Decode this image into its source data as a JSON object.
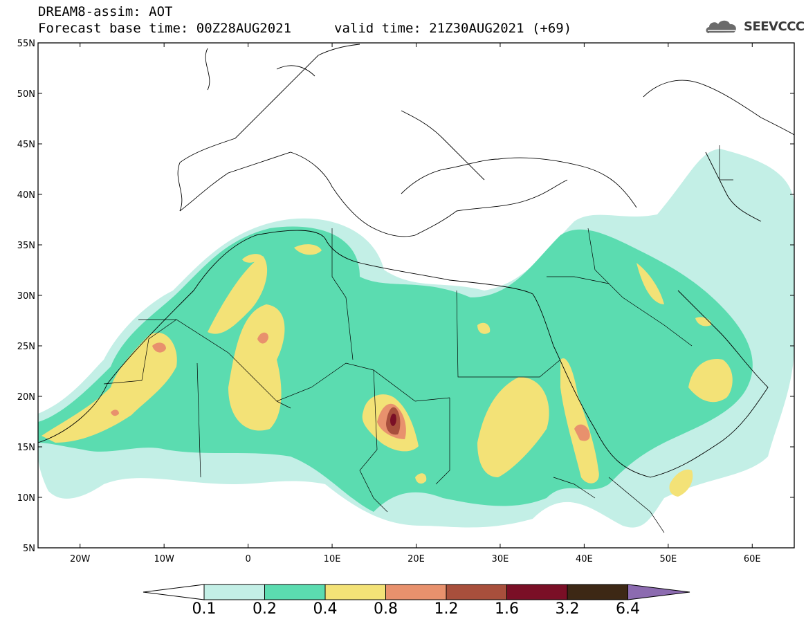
{
  "header": {
    "title_line1": "DREAM8-assim: AOT",
    "title_line2": "Forecast base time: 00Z28AUG2021",
    "valid_time": "valid time: 21Z30AUG2021 (+69)",
    "logo_text": "SEEVCCC"
  },
  "map": {
    "lon_range": [
      -25,
      65
    ],
    "lat_range": [
      5,
      55
    ],
    "lat_ticks": [
      "55N",
      "50N",
      "45N",
      "40N",
      "35N",
      "30N",
      "25N",
      "20N",
      "15N",
      "10N",
      "5N"
    ],
    "lon_ticks": [
      "20W",
      "10W",
      "0",
      "10E",
      "20E",
      "30E",
      "40E",
      "50E",
      "60E"
    ]
  },
  "colorbar": {
    "labels": [
      "0.1",
      "0.2",
      "0.4",
      "0.8",
      "1.2",
      "1.6",
      "3.2",
      "6.4"
    ],
    "colors": [
      "#ffffff",
      "#c3efe6",
      "#5bdcb0",
      "#f3e277",
      "#e8916d",
      "#a84f3c",
      "#7a0f26",
      "#3d2815",
      "#8c6bb0"
    ]
  }
}
